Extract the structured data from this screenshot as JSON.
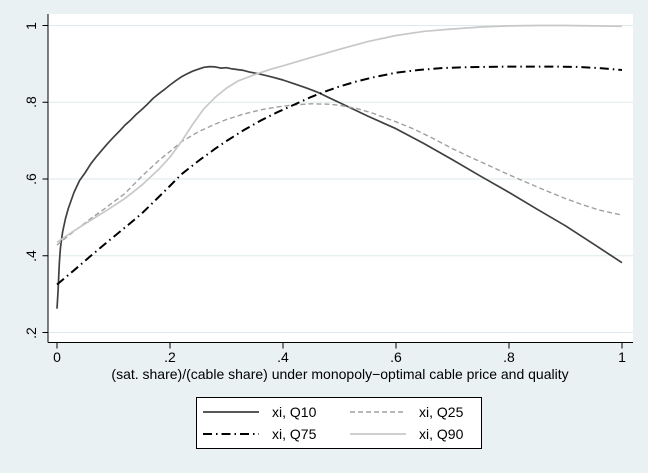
{
  "figure": {
    "background_color": "#e9f1f2",
    "plot_background": "#ffffff",
    "grid_color": "#dde9ec",
    "axis_color": "#000000"
  },
  "chart_data": {
    "type": "line",
    "title": "",
    "xlabel": "(sat. share)/(cable share) under monopoly−optimal cable price and quality",
    "ylabel": "",
    "xlim": [
      0,
      1
    ],
    "ylim": [
      0.2,
      1.0
    ],
    "grid": true,
    "legend_position": "bottom",
    "x_ticks": [
      "0",
      ".2",
      ".4",
      ".6",
      ".8",
      "1"
    ],
    "x_tick_values": [
      0,
      0.2,
      0.4,
      0.6,
      0.8,
      1
    ],
    "y_ticks": [
      "1",
      ".8",
      ".6",
      ".4",
      ".2"
    ],
    "y_tick_values": [
      1,
      0.8,
      0.6,
      0.4,
      0.2
    ],
    "series": [
      {
        "name": "xi, Q10",
        "color": "#404040",
        "style": "solid",
        "width": 1.7,
        "points": [
          [
            0,
            0.262
          ],
          [
            0.002,
            0.31
          ],
          [
            0.004,
            0.38
          ],
          [
            0.006,
            0.42
          ],
          [
            0.01,
            0.462
          ],
          [
            0.015,
            0.497
          ],
          [
            0.02,
            0.523
          ],
          [
            0.03,
            0.565
          ],
          [
            0.04,
            0.596
          ],
          [
            0.05,
            0.617
          ],
          [
            0.06,
            0.64
          ],
          [
            0.07,
            0.659
          ],
          [
            0.08,
            0.676
          ],
          [
            0.09,
            0.693
          ],
          [
            0.1,
            0.709
          ],
          [
            0.11,
            0.724
          ],
          [
            0.12,
            0.74
          ],
          [
            0.13,
            0.753
          ],
          [
            0.14,
            0.768
          ],
          [
            0.15,
            0.781
          ],
          [
            0.16,
            0.795
          ],
          [
            0.17,
            0.81
          ],
          [
            0.18,
            0.822
          ],
          [
            0.19,
            0.833
          ],
          [
            0.2,
            0.845
          ],
          [
            0.21,
            0.856
          ],
          [
            0.22,
            0.866
          ],
          [
            0.23,
            0.874
          ],
          [
            0.24,
            0.881
          ],
          [
            0.25,
            0.886
          ],
          [
            0.26,
            0.891
          ],
          [
            0.27,
            0.893
          ],
          [
            0.28,
            0.892
          ],
          [
            0.29,
            0.889
          ],
          [
            0.3,
            0.89
          ],
          [
            0.31,
            0.887
          ],
          [
            0.32,
            0.885
          ],
          [
            0.33,
            0.883
          ],
          [
            0.34,
            0.879
          ],
          [
            0.35,
            0.876
          ],
          [
            0.36,
            0.873
          ],
          [
            0.38,
            0.866
          ],
          [
            0.4,
            0.858
          ],
          [
            0.42,
            0.848
          ],
          [
            0.44,
            0.838
          ],
          [
            0.46,
            0.827
          ],
          [
            0.48,
            0.813
          ],
          [
            0.5,
            0.799
          ],
          [
            0.52,
            0.785
          ],
          [
            0.55,
            0.764
          ],
          [
            0.58,
            0.744
          ],
          [
            0.6,
            0.731
          ],
          [
            0.65,
            0.692
          ],
          [
            0.7,
            0.65
          ],
          [
            0.75,
            0.607
          ],
          [
            0.8,
            0.565
          ],
          [
            0.85,
            0.521
          ],
          [
            0.9,
            0.478
          ],
          [
            0.95,
            0.43
          ],
          [
            1,
            0.382
          ]
        ]
      },
      {
        "name": "xi, Q25",
        "color": "#a0a0a0",
        "style": "dashed",
        "width": 1.4,
        "points": [
          [
            0,
            0.428
          ],
          [
            0.02,
            0.452
          ],
          [
            0.04,
            0.475
          ],
          [
            0.06,
            0.497
          ],
          [
            0.08,
            0.518
          ],
          [
            0.1,
            0.54
          ],
          [
            0.12,
            0.562
          ],
          [
            0.15,
            0.607
          ],
          [
            0.18,
            0.648
          ],
          [
            0.2,
            0.672
          ],
          [
            0.22,
            0.697
          ],
          [
            0.25,
            0.723
          ],
          [
            0.28,
            0.743
          ],
          [
            0.3,
            0.755
          ],
          [
            0.33,
            0.769
          ],
          [
            0.36,
            0.78
          ],
          [
            0.39,
            0.788
          ],
          [
            0.42,
            0.793
          ],
          [
            0.45,
            0.796
          ],
          [
            0.48,
            0.795
          ],
          [
            0.5,
            0.792
          ],
          [
            0.53,
            0.784
          ],
          [
            0.56,
            0.771
          ],
          [
            0.6,
            0.749
          ],
          [
            0.63,
            0.731
          ],
          [
            0.66,
            0.71
          ],
          [
            0.7,
            0.679
          ],
          [
            0.73,
            0.658
          ],
          [
            0.76,
            0.638
          ],
          [
            0.8,
            0.611
          ],
          [
            0.83,
            0.592
          ],
          [
            0.86,
            0.573
          ],
          [
            0.9,
            0.549
          ],
          [
            0.93,
            0.533
          ],
          [
            0.96,
            0.519
          ],
          [
            1,
            0.506
          ]
        ]
      },
      {
        "name": "xi, Q75",
        "color": "#000000",
        "style": "dash-dot",
        "width": 2,
        "points": [
          [
            0,
            0.325
          ],
          [
            0.03,
            0.362
          ],
          [
            0.06,
            0.4
          ],
          [
            0.09,
            0.437
          ],
          [
            0.12,
            0.473
          ],
          [
            0.15,
            0.51
          ],
          [
            0.18,
            0.553
          ],
          [
            0.2,
            0.582
          ],
          [
            0.22,
            0.612
          ],
          [
            0.25,
            0.647
          ],
          [
            0.28,
            0.679
          ],
          [
            0.3,
            0.699
          ],
          [
            0.33,
            0.727
          ],
          [
            0.36,
            0.752
          ],
          [
            0.39,
            0.774
          ],
          [
            0.42,
            0.794
          ],
          [
            0.45,
            0.814
          ],
          [
            0.48,
            0.831
          ],
          [
            0.5,
            0.841
          ],
          [
            0.53,
            0.854
          ],
          [
            0.56,
            0.865
          ],
          [
            0.6,
            0.877
          ],
          [
            0.64,
            0.884
          ],
          [
            0.68,
            0.889
          ],
          [
            0.72,
            0.891
          ],
          [
            0.76,
            0.892
          ],
          [
            0.8,
            0.893
          ],
          [
            0.84,
            0.893
          ],
          [
            0.88,
            0.893
          ],
          [
            0.92,
            0.892
          ],
          [
            0.96,
            0.889
          ],
          [
            1,
            0.884
          ]
        ]
      },
      {
        "name": "xi, Q90",
        "color": "#c8c8c8",
        "style": "solid",
        "width": 1.7,
        "points": [
          [
            0,
            0.435
          ],
          [
            0.03,
            0.465
          ],
          [
            0.06,
            0.493
          ],
          [
            0.09,
            0.52
          ],
          [
            0.12,
            0.549
          ],
          [
            0.15,
            0.584
          ],
          [
            0.18,
            0.625
          ],
          [
            0.2,
            0.657
          ],
          [
            0.22,
            0.697
          ],
          [
            0.24,
            0.742
          ],
          [
            0.26,
            0.783
          ],
          [
            0.28,
            0.813
          ],
          [
            0.3,
            0.837
          ],
          [
            0.32,
            0.855
          ],
          [
            0.35,
            0.872
          ],
          [
            0.38,
            0.887
          ],
          [
            0.4,
            0.895
          ],
          [
            0.45,
            0.917
          ],
          [
            0.5,
            0.938
          ],
          [
            0.55,
            0.958
          ],
          [
            0.6,
            0.974
          ],
          [
            0.65,
            0.985
          ],
          [
            0.7,
            0.991
          ],
          [
            0.75,
            0.996
          ],
          [
            0.8,
            0.999
          ],
          [
            0.85,
            1.0
          ],
          [
            0.9,
            1.0
          ],
          [
            0.95,
            0.999
          ],
          [
            1,
            0.998
          ]
        ]
      }
    ]
  },
  "legend": {
    "entries": [
      {
        "label": "xi, Q10"
      },
      {
        "label": "xi, Q25"
      },
      {
        "label": "xi, Q75"
      },
      {
        "label": "xi, Q90"
      }
    ]
  }
}
